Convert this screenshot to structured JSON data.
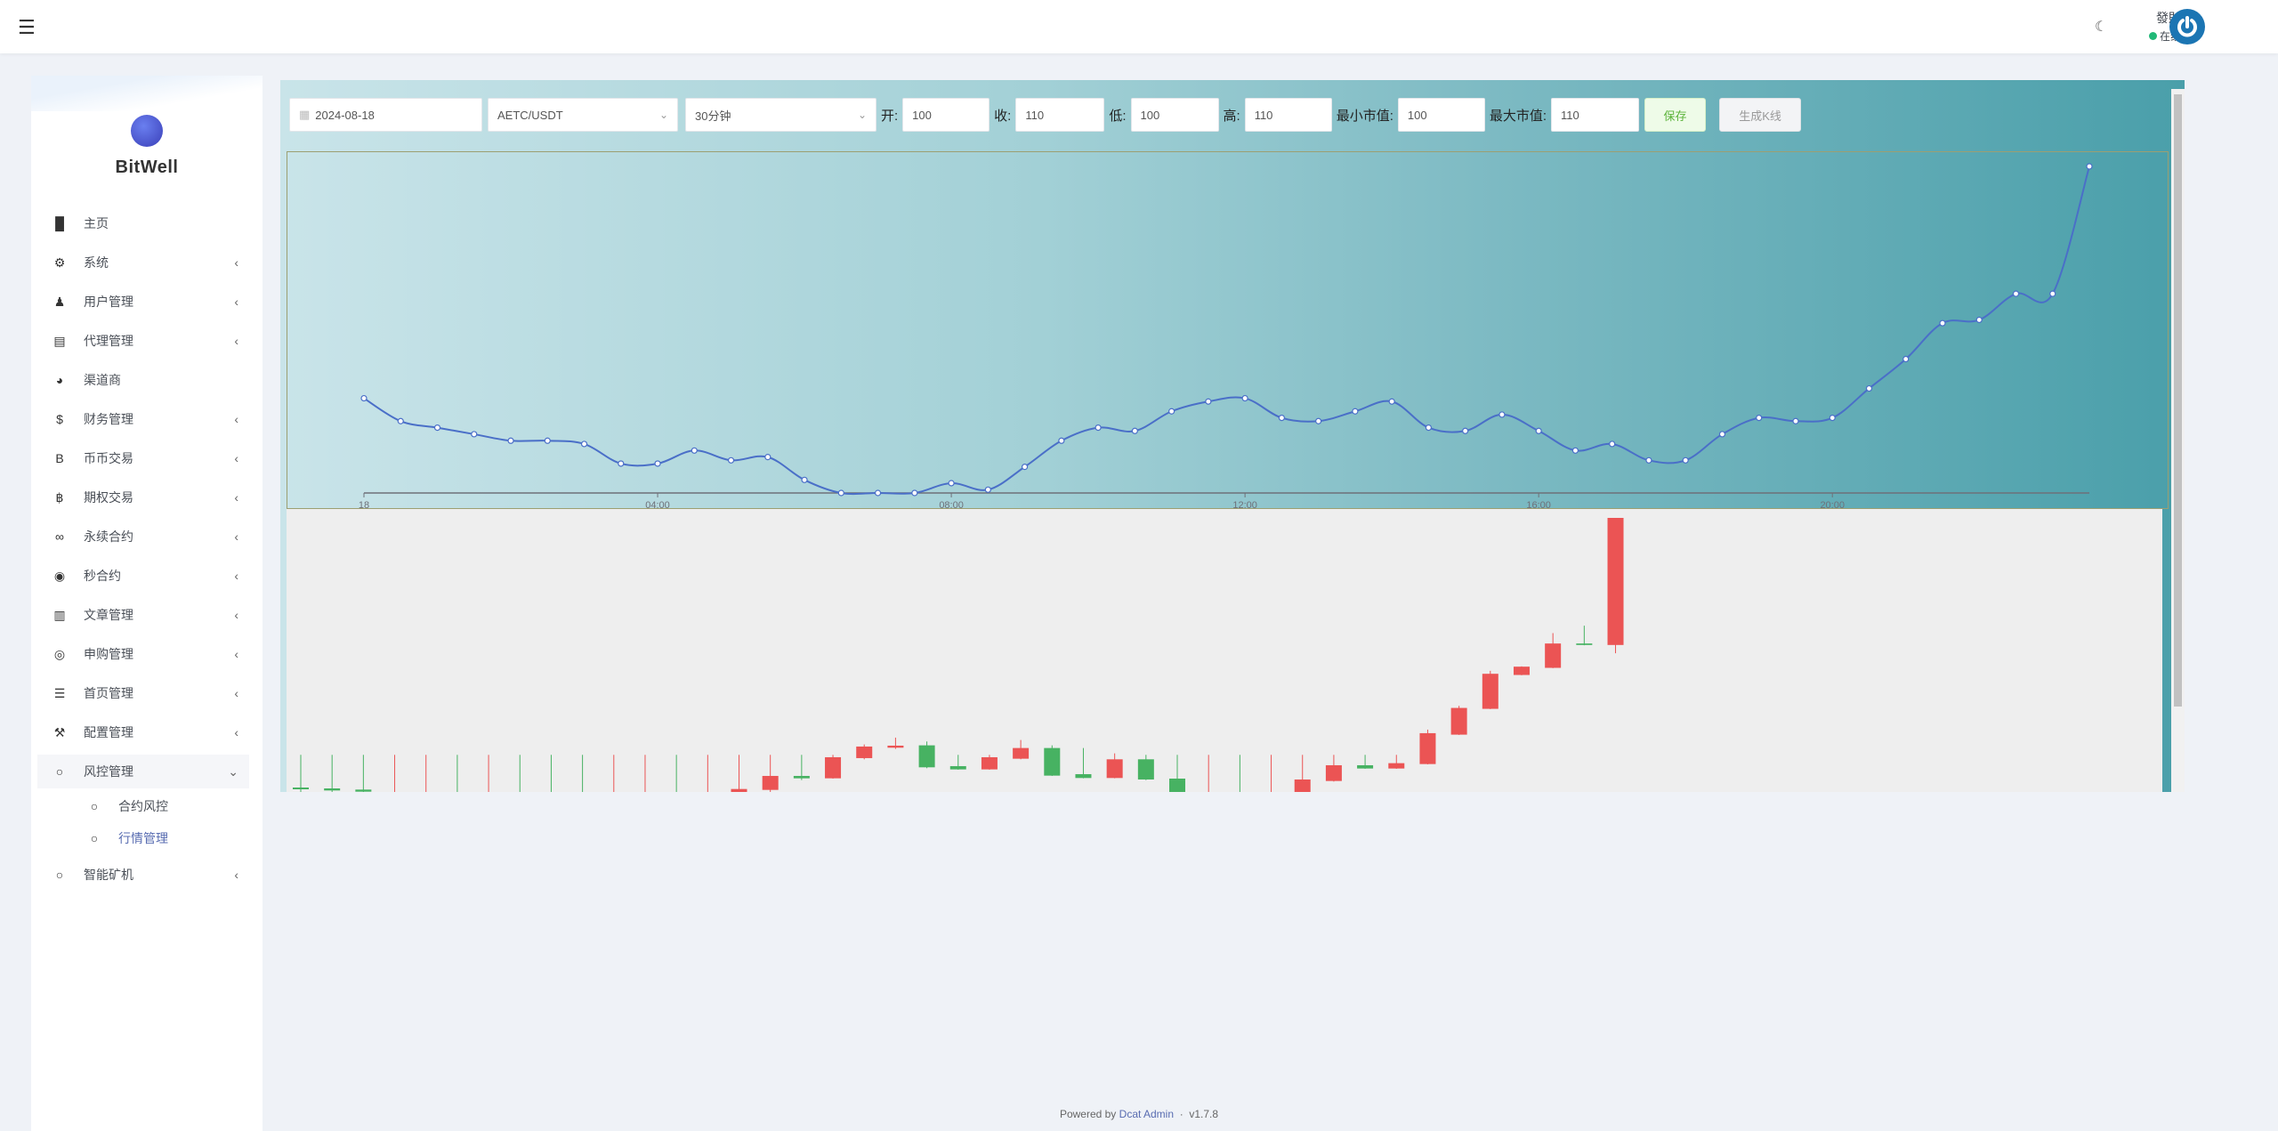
{
  "header": {
    "menu_icon": "hamburger-icon",
    "theme_icon": "moon-icon",
    "user_name": "發財",
    "user_status": "在线",
    "status_color": "#21b978"
  },
  "sidebar": {
    "brand": "BitWell",
    "items": [
      {
        "label": "主页",
        "icon": "bar-chart-icon",
        "chevron": false
      },
      {
        "label": "系统",
        "icon": "gear-icon",
        "chevron": true
      },
      {
        "label": "用户管理",
        "icon": "users-icon",
        "chevron": true
      },
      {
        "label": "代理管理",
        "icon": "id-card-icon",
        "chevron": true
      },
      {
        "label": "渠道商",
        "icon": "user-circle-icon",
        "chevron": false
      },
      {
        "label": "财务管理",
        "icon": "dollar-icon",
        "chevron": true
      },
      {
        "label": "币币交易",
        "icon": "b-icon",
        "chevron": true
      },
      {
        "label": "期权交易",
        "icon": "bitcoin-icon",
        "chevron": true
      },
      {
        "label": "永续合约",
        "icon": "link-icon",
        "chevron": true
      },
      {
        "label": "秒合约",
        "icon": "dot-circle-icon",
        "chevron": true
      },
      {
        "label": "文章管理",
        "icon": "newspaper-icon",
        "chevron": true
      },
      {
        "label": "申购管理",
        "icon": "lifebuoy-icon",
        "chevron": true
      },
      {
        "label": "首页管理",
        "icon": "list-icon",
        "chevron": true
      },
      {
        "label": "配置管理",
        "icon": "wrench-icon",
        "chevron": true
      },
      {
        "label": "风控管理",
        "icon": "circle-icon",
        "chevron": true,
        "open": true
      }
    ],
    "sub_items": [
      {
        "label": "合约风控",
        "active": false
      },
      {
        "label": "行情管理",
        "active": true
      }
    ],
    "last_item": {
      "label": "智能矿机",
      "icon": "circle-icon"
    },
    "active_color": "#586cb1"
  },
  "toolbar": {
    "date": "2024-08-18",
    "pair": "AETC/USDT",
    "interval": "30分钟",
    "open_label": "开:",
    "open": "100",
    "close_label": "收:",
    "close": "110",
    "low_label": "低:",
    "low": "100",
    "high_label": "高:",
    "high": "110",
    "min_label": "最小市值:",
    "min": "100",
    "max_label": "最大市值:",
    "max": "110",
    "save": "保存",
    "generate": "生成K线"
  },
  "chart_data": [
    {
      "type": "line",
      "x_ticks": [
        "18",
        "04:00",
        "08:00",
        "12:00",
        "16:00",
        "20:00"
      ],
      "x_tick_index": [
        0,
        8,
        16,
        24,
        32,
        40
      ],
      "interval": "30分钟",
      "line_color": "#4a6fc8",
      "y_axis_visible": false,
      "grid": false,
      "values": [
        102.9,
        102.2,
        102.0,
        101.8,
        101.6,
        101.6,
        101.5,
        100.9,
        100.9,
        101.3,
        101.0,
        101.1,
        100.4,
        100.0,
        100.0,
        100.0,
        100.3,
        100.1,
        100.8,
        101.6,
        102.0,
        101.9,
        102.5,
        102.8,
        102.9,
        102.3,
        102.2,
        102.5,
        102.8,
        102.0,
        101.9,
        102.4,
        101.9,
        101.3,
        101.5,
        101.0,
        101.0,
        101.8,
        102.3,
        102.2,
        102.3,
        103.2,
        104.1,
        105.2,
        105.3,
        106.1,
        106.1,
        110.0
      ]
    },
    {
      "type": "candlestick",
      "up_color": "#eb5454",
      "down_color": "#47b262",
      "ylim": [
        0,
        92.3
      ],
      "ohlc": [
        [
          1.5,
          0.9,
          0,
          12.5
        ],
        [
          1.2,
          0.5,
          0,
          12.5
        ],
        [
          0.8,
          0.1,
          -1,
          12.5
        ],
        [
          -3,
          -2,
          -4,
          12.5
        ],
        [
          -3,
          -2,
          -4,
          12.5
        ],
        [
          -2,
          -3,
          -4,
          12.5
        ],
        [
          -3,
          -2,
          -4,
          12.5
        ],
        [
          -2,
          -3,
          -4,
          12.5
        ],
        [
          -2,
          -3,
          -4,
          12.5
        ],
        [
          -2,
          -3,
          -4,
          12.5
        ],
        [
          -3,
          -2,
          -4,
          12.5
        ],
        [
          -3,
          -2,
          -4,
          12.5
        ],
        [
          -2,
          -3,
          -4,
          12.5
        ],
        [
          -3,
          -2,
          -4,
          12.5
        ],
        [
          0,
          1,
          -1,
          12.5
        ],
        [
          0.7,
          5.4,
          0,
          12.5
        ],
        [
          5.4,
          4.6,
          4,
          12.5
        ],
        [
          4.6,
          11.7,
          4.5,
          12.5
        ],
        [
          11.4,
          15.3,
          11,
          16
        ],
        [
          14.9,
          15.6,
          14.5,
          18.3
        ],
        [
          15.7,
          8.3,
          8,
          17
        ],
        [
          8.7,
          7.6,
          7.5,
          12.5
        ],
        [
          7.6,
          11.7,
          7.5,
          12.5
        ],
        [
          11.2,
          14.8,
          11,
          17.5
        ],
        [
          14.8,
          5.5,
          5.4,
          15.7
        ],
        [
          6,
          4.7,
          4.6,
          14.8
        ],
        [
          4.7,
          11,
          4.6,
          13
        ],
        [
          11,
          4.2,
          4,
          12.5
        ],
        [
          4.5,
          -1,
          -2,
          12.5
        ],
        [
          -3,
          -2,
          -4,
          12.5
        ],
        [
          -2,
          -3,
          -4,
          12.5
        ],
        [
          -3,
          -2,
          -4,
          12.5
        ],
        [
          -1,
          4.2,
          -2,
          12.5
        ],
        [
          3.7,
          9,
          3.5,
          12.5
        ],
        [
          9,
          7.9,
          7.8,
          12.5
        ],
        [
          7.9,
          9.7,
          7.8,
          12.5
        ],
        [
          9.4,
          19.8,
          9.3,
          21
        ],
        [
          19.3,
          28.3,
          19.2,
          29
        ],
        [
          28,
          39.8,
          27.9,
          40.8
        ],
        [
          39.4,
          42.2,
          39.3,
          42.3
        ],
        [
          41.8,
          50,
          41.7,
          53.5
        ],
        [
          50,
          49.5,
          49.4,
          56
        ],
        [
          49.5,
          92.3,
          46.7,
          92.3
        ]
      ]
    }
  ],
  "footer": {
    "prefix": "Powered by",
    "link": "Dcat Admin",
    "sep": "·",
    "version": "v1.7.8"
  }
}
